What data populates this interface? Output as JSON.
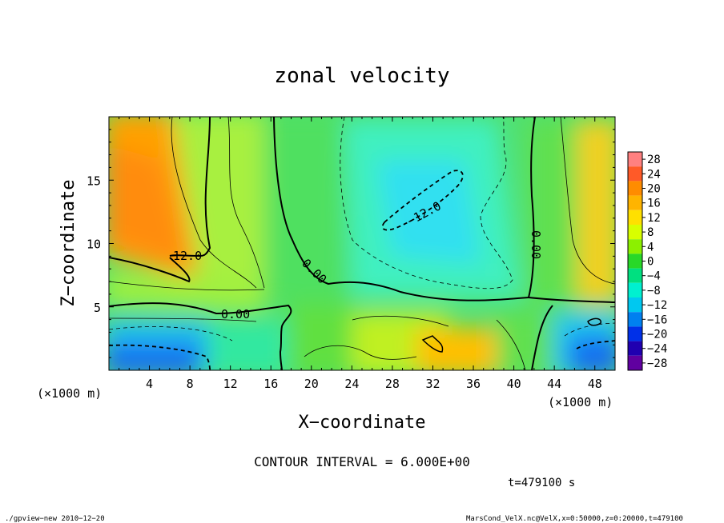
{
  "chart_data": {
    "type": "heatmap",
    "title": "zonal velocity",
    "xlabel": "X−coordinate",
    "ylabel": "Z−coordinate",
    "x_unit_label_left": "(×1000 m)",
    "x_unit_label_right": "(×1000 m)",
    "xlim": [
      0,
      50
    ],
    "ylim": [
      0,
      20
    ],
    "x_ticks": [
      4,
      8,
      12,
      16,
      20,
      24,
      28,
      32,
      36,
      40,
      44,
      48
    ],
    "x_tick_labels": [
      "4",
      "8",
      "12",
      "16",
      "20",
      "24",
      "28",
      "32",
      "36",
      "40",
      "44",
      "48"
    ],
    "y_ticks": [
      5,
      10,
      15
    ],
    "y_tick_labels": [
      "5",
      "10",
      "15"
    ],
    "colorbar": {
      "levels": [
        28,
        24,
        20,
        16,
        12,
        8,
        4,
        0,
        -4,
        -8,
        -12,
        -16,
        -20,
        -24,
        -28
      ],
      "labels": [
        "28",
        "24",
        "20",
        "16",
        "12",
        "8",
        "4",
        "0",
        "−4",
        "−8",
        "−12",
        "−16",
        "−20",
        "−24",
        "−28"
      ],
      "colors": [
        "#ff8080",
        "#ff5a28",
        "#ff8c00",
        "#ffb400",
        "#ffe000",
        "#d8ff00",
        "#8cf000",
        "#28d828",
        "#00e080",
        "#00f0d0",
        "#00c8f0",
        "#0080f0",
        "#0030e8",
        "#2000b0",
        "#6000a0"
      ]
    },
    "contour_interval_text": "CONTOUR INTERVAL = 6.000E+00",
    "contour_labels": [
      "12.0",
      "0.00",
      "0.00",
      "−12.0",
      "0.00"
    ],
    "time_text": "t=479100 s"
  },
  "footer": {
    "left": "./gpview−new   2010−12−20",
    "right": "MarsCond_VelX.nc@VelX,x=0:50000,z=0:20000,t=479100"
  }
}
